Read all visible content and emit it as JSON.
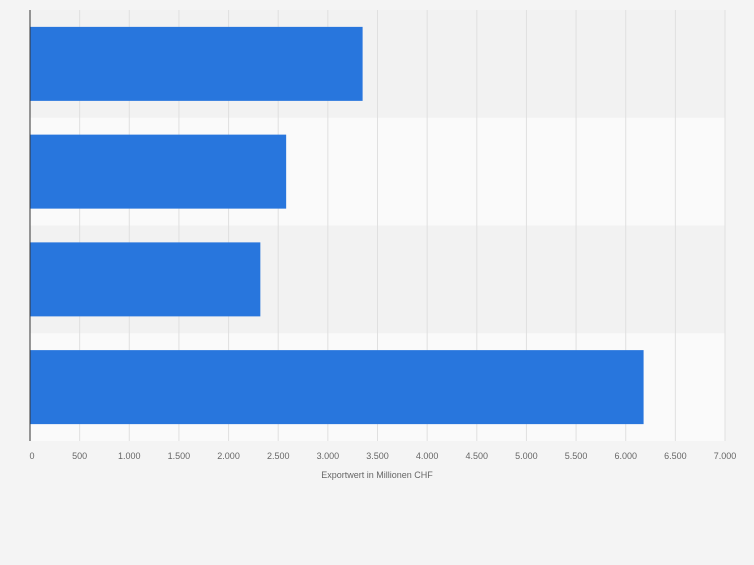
{
  "chart_data": {
    "type": "bar",
    "orientation": "horizontal",
    "categories": [
      "",
      "",
      "",
      ""
    ],
    "values": [
      3350,
      2580,
      2320,
      6180
    ],
    "xlim": [
      0,
      7000
    ],
    "xticks": [
      0,
      500,
      1000,
      1500,
      2000,
      2500,
      3000,
      3500,
      4000,
      4500,
      5000,
      5500,
      6000,
      6500,
      7000
    ],
    "tick_labels": [
      "0",
      "500",
      "1.000",
      "1.500",
      "2.000",
      "2.500",
      "3.000",
      "3.500",
      "4.000",
      "4.500",
      "5.000",
      "5.500",
      "6.000",
      "6.500",
      "7.000"
    ],
    "xlabel": "Exportwert in Millionen CHF",
    "ylabel": "",
    "title": "",
    "grid": true,
    "legend": "none",
    "colors": {
      "bar": "#2876dd",
      "band_dark": "#f2f2f2",
      "band_light": "#fafafa",
      "grid": "#e0e0e0",
      "axis": "#333333",
      "text": "#666666"
    }
  }
}
